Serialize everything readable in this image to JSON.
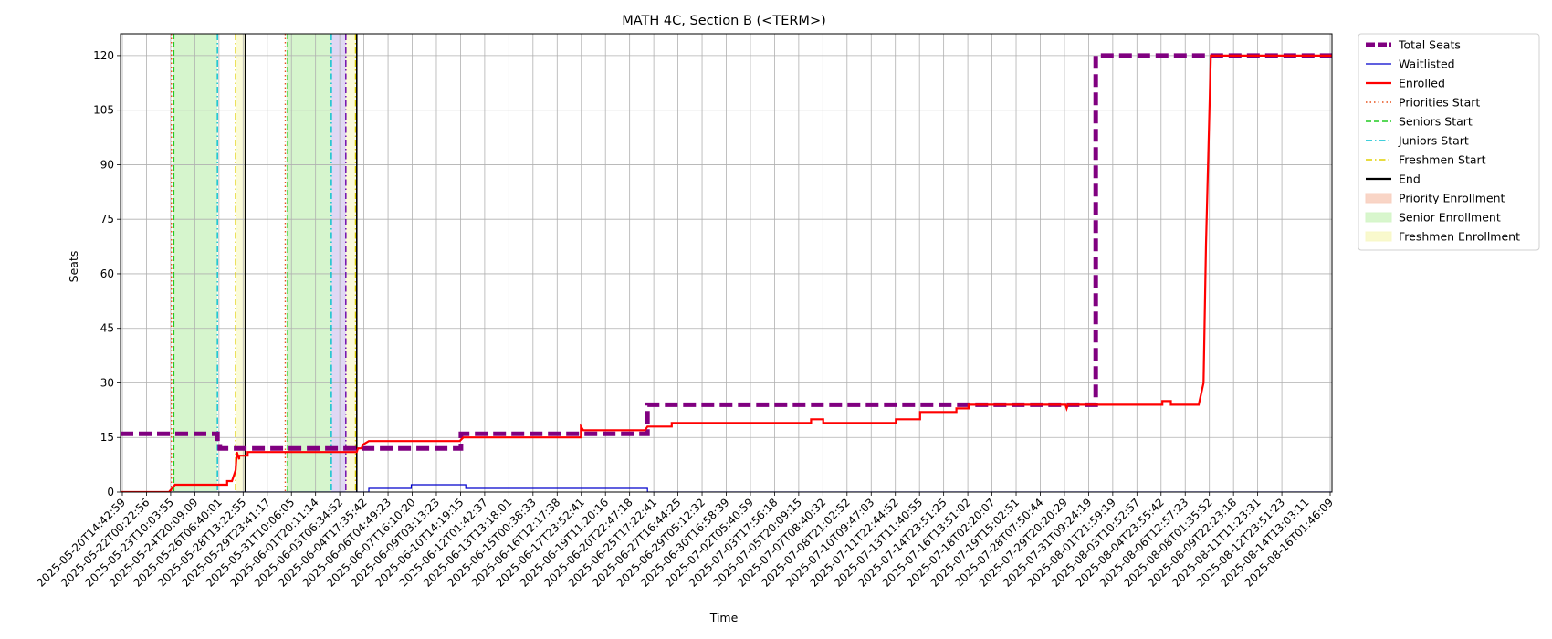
{
  "chart_data": {
    "type": "line",
    "title": "MATH 4C, Section B (<TERM>)",
    "xlabel": "Time",
    "ylabel": "Seats",
    "ylim": [
      0,
      126
    ],
    "yticks": [
      0,
      15,
      30,
      45,
      60,
      75,
      90,
      105,
      120
    ],
    "xlim": [
      0,
      100
    ],
    "grid": true,
    "legend_position": "outside-right-top",
    "x_tick_labels": [
      "2025-05-20T14:42:59",
      "2025-05-22T00:22:56",
      "2025-05-23T10:03:55",
      "2025-05-24T20:09:09",
      "2025-05-26T06:40:01",
      "2025-05-28T13:22:55",
      "2025-05-29T23:41:17",
      "2025-05-31T10:06:05",
      "2025-06-01T20:11:14",
      "2025-06-03T06:34:52",
      "2025-06-04T17:35:42",
      "2025-06-06T04:49:23",
      "2025-06-07T16:10:20",
      "2025-06-09T03:13:23",
      "2025-06-10T14:19:15",
      "2025-06-12T01:42:37",
      "2025-06-13T13:18:01",
      "2025-06-15T00:38:33",
      "2025-06-16T12:17:38",
      "2025-06-17T23:52:41",
      "2025-06-19T11:20:16",
      "2025-06-20T22:47:18",
      "2025-06-25T17:22:41",
      "2025-06-27T16:44:25",
      "2025-06-29T05:12:32",
      "2025-06-30T16:58:39",
      "2025-07-02T05:40:59",
      "2025-07-03T17:56:18",
      "2025-07-05T20:09:15",
      "2025-07-07T08:40:32",
      "2025-07-08T21:02:52",
      "2025-07-10T09:47:03",
      "2025-07-11T22:44:52",
      "2025-07-13T11:40:55",
      "2025-07-14T23:51:25",
      "2025-07-16T13:51:02",
      "2025-07-18T02:20:07",
      "2025-07-19T15:02:51",
      "2025-07-28T07:50:44",
      "2025-07-29T20:20:29",
      "2025-07-31T09:24:19",
      "2025-08-01T21:59:19",
      "2025-08-03T10:52:57",
      "2025-08-04T23:55:42",
      "2025-08-06T12:57:23",
      "2025-08-08T01:35:52",
      "2025-08-09T22:23:18",
      "2025-08-11T11:23:31",
      "2025-08-12T23:51:23",
      "2025-08-14T13:03:11",
      "2025-08-16T01:46:09"
    ],
    "legend": [
      {
        "label": "Total Seats",
        "color": "#800080",
        "style": "thick-dashed"
      },
      {
        "label": "Waitlisted",
        "color": "#0000cc",
        "style": "thin-solid"
      },
      {
        "label": "Enrolled",
        "color": "#ff0000",
        "style": "solid"
      },
      {
        "label": "Priorities Start",
        "color": "#e8501a",
        "style": "dotted"
      },
      {
        "label": "Seniors Start",
        "color": "#22cc22",
        "style": "dashed"
      },
      {
        "label": "Juniors Start",
        "color": "#00bfcf",
        "style": "dash-dot"
      },
      {
        "label": "Freshmen Start",
        "color": "#e0d000",
        "style": "dash-dot"
      },
      {
        "label": "End",
        "color": "#000000",
        "style": "solid"
      },
      {
        "label": "Priority Enrollment",
        "color": "#f8d0c0",
        "style": "patch"
      },
      {
        "label": "Senior Enrollment",
        "color": "#d4f5c8",
        "style": "patch"
      },
      {
        "label": "Freshmen Enrollment",
        "color": "#f8f8c8",
        "style": "patch"
      }
    ],
    "shaded_regions": [
      {
        "from": 4.3,
        "to": 8.0,
        "color": "#d6f5cd"
      },
      {
        "from": 9.5,
        "to": 10.3,
        "color": "#fbfbd8"
      },
      {
        "from": 13.7,
        "to": 17.4,
        "color": "#d6f5cd"
      },
      {
        "from": 17.4,
        "to": 18.6,
        "color": "#e0d8f4"
      },
      {
        "from": 18.6,
        "to": 19.4,
        "color": "#fbfbd8"
      }
    ],
    "vlines": [
      {
        "x": 4.2,
        "color": "#e8501a",
        "style": "dotted"
      },
      {
        "x": 4.4,
        "color": "#22cc22",
        "style": "dashed"
      },
      {
        "x": 8.0,
        "color": "#00bfcf",
        "style": "dash-dot"
      },
      {
        "x": 9.5,
        "color": "#e0d000",
        "style": "dash-dot"
      },
      {
        "x": 10.3,
        "color": "#000000",
        "style": "solid"
      },
      {
        "x": 13.6,
        "color": "#e8501a",
        "style": "dotted"
      },
      {
        "x": 13.8,
        "color": "#22cc22",
        "style": "dashed"
      },
      {
        "x": 17.4,
        "color": "#00bfcf",
        "style": "dash-dot"
      },
      {
        "x": 18.6,
        "color": "#6a00a8",
        "style": "dash-dot"
      },
      {
        "x": 19.4,
        "color": "#e0d000",
        "style": "dash-dot"
      },
      {
        "x": 19.5,
        "color": "#000000",
        "style": "solid"
      }
    ],
    "series": [
      {
        "name": "Total Seats",
        "color": "#800080",
        "style": "thick-dashed",
        "x": [
          0,
          8.0,
          8.0,
          8.2,
          8.2,
          19.7,
          19.7,
          28.1,
          28.1,
          43.5,
          43.5,
          80.5,
          80.5,
          100
        ],
        "y": [
          16,
          16,
          14,
          14,
          12,
          12,
          12,
          12,
          16,
          16,
          24,
          24,
          120,
          120
        ]
      },
      {
        "name": "Waitlisted",
        "color": "#0000cc",
        "style": "thin-solid",
        "x": [
          0,
          20.5,
          20.5,
          24.0,
          24.0,
          28.5,
          28.5,
          43.5,
          43.5,
          100
        ],
        "y": [
          0,
          0,
          1,
          1,
          2,
          2,
          1,
          1,
          0,
          0
        ]
      },
      {
        "name": "Enrolled",
        "color": "#ff0000",
        "style": "solid",
        "x": [
          0,
          4.0,
          4.5,
          8.8,
          8.8,
          9.2,
          9.5,
          9.6,
          9.8,
          9.8,
          10.5,
          10.5,
          11.0,
          11.0,
          19.3,
          19.5,
          19.6,
          19.9,
          20.0,
          20.5,
          27.5,
          28.0,
          28.3,
          28.5,
          38.0,
          38.0,
          38.2,
          38.2,
          43.0,
          43.3,
          43.5,
          45.5,
          45.5,
          57.0,
          57.0,
          58.0,
          58.0,
          64.0,
          64.0,
          66.0,
          66.0,
          69.0,
          69.0,
          70.0,
          70.0,
          72.0,
          72.0,
          78.0,
          78.1,
          78.2,
          86.0,
          86.0,
          86.7,
          86.7,
          89.0,
          89.4,
          89.6,
          90.0,
          90.0,
          100
        ],
        "y": [
          0,
          0,
          2,
          2,
          3,
          3,
          6,
          11,
          9,
          10,
          10,
          11,
          11,
          11,
          11,
          11,
          12,
          12,
          13,
          14,
          14,
          14,
          15,
          15,
          15,
          18,
          17,
          17,
          17,
          17,
          18,
          18,
          19,
          19,
          20,
          20,
          19,
          19,
          20,
          20,
          22,
          22,
          23,
          23,
          24,
          24,
          24,
          24,
          23,
          24,
          24,
          25,
          25,
          24,
          24,
          30,
          68,
          120,
          120,
          120
        ]
      }
    ]
  }
}
